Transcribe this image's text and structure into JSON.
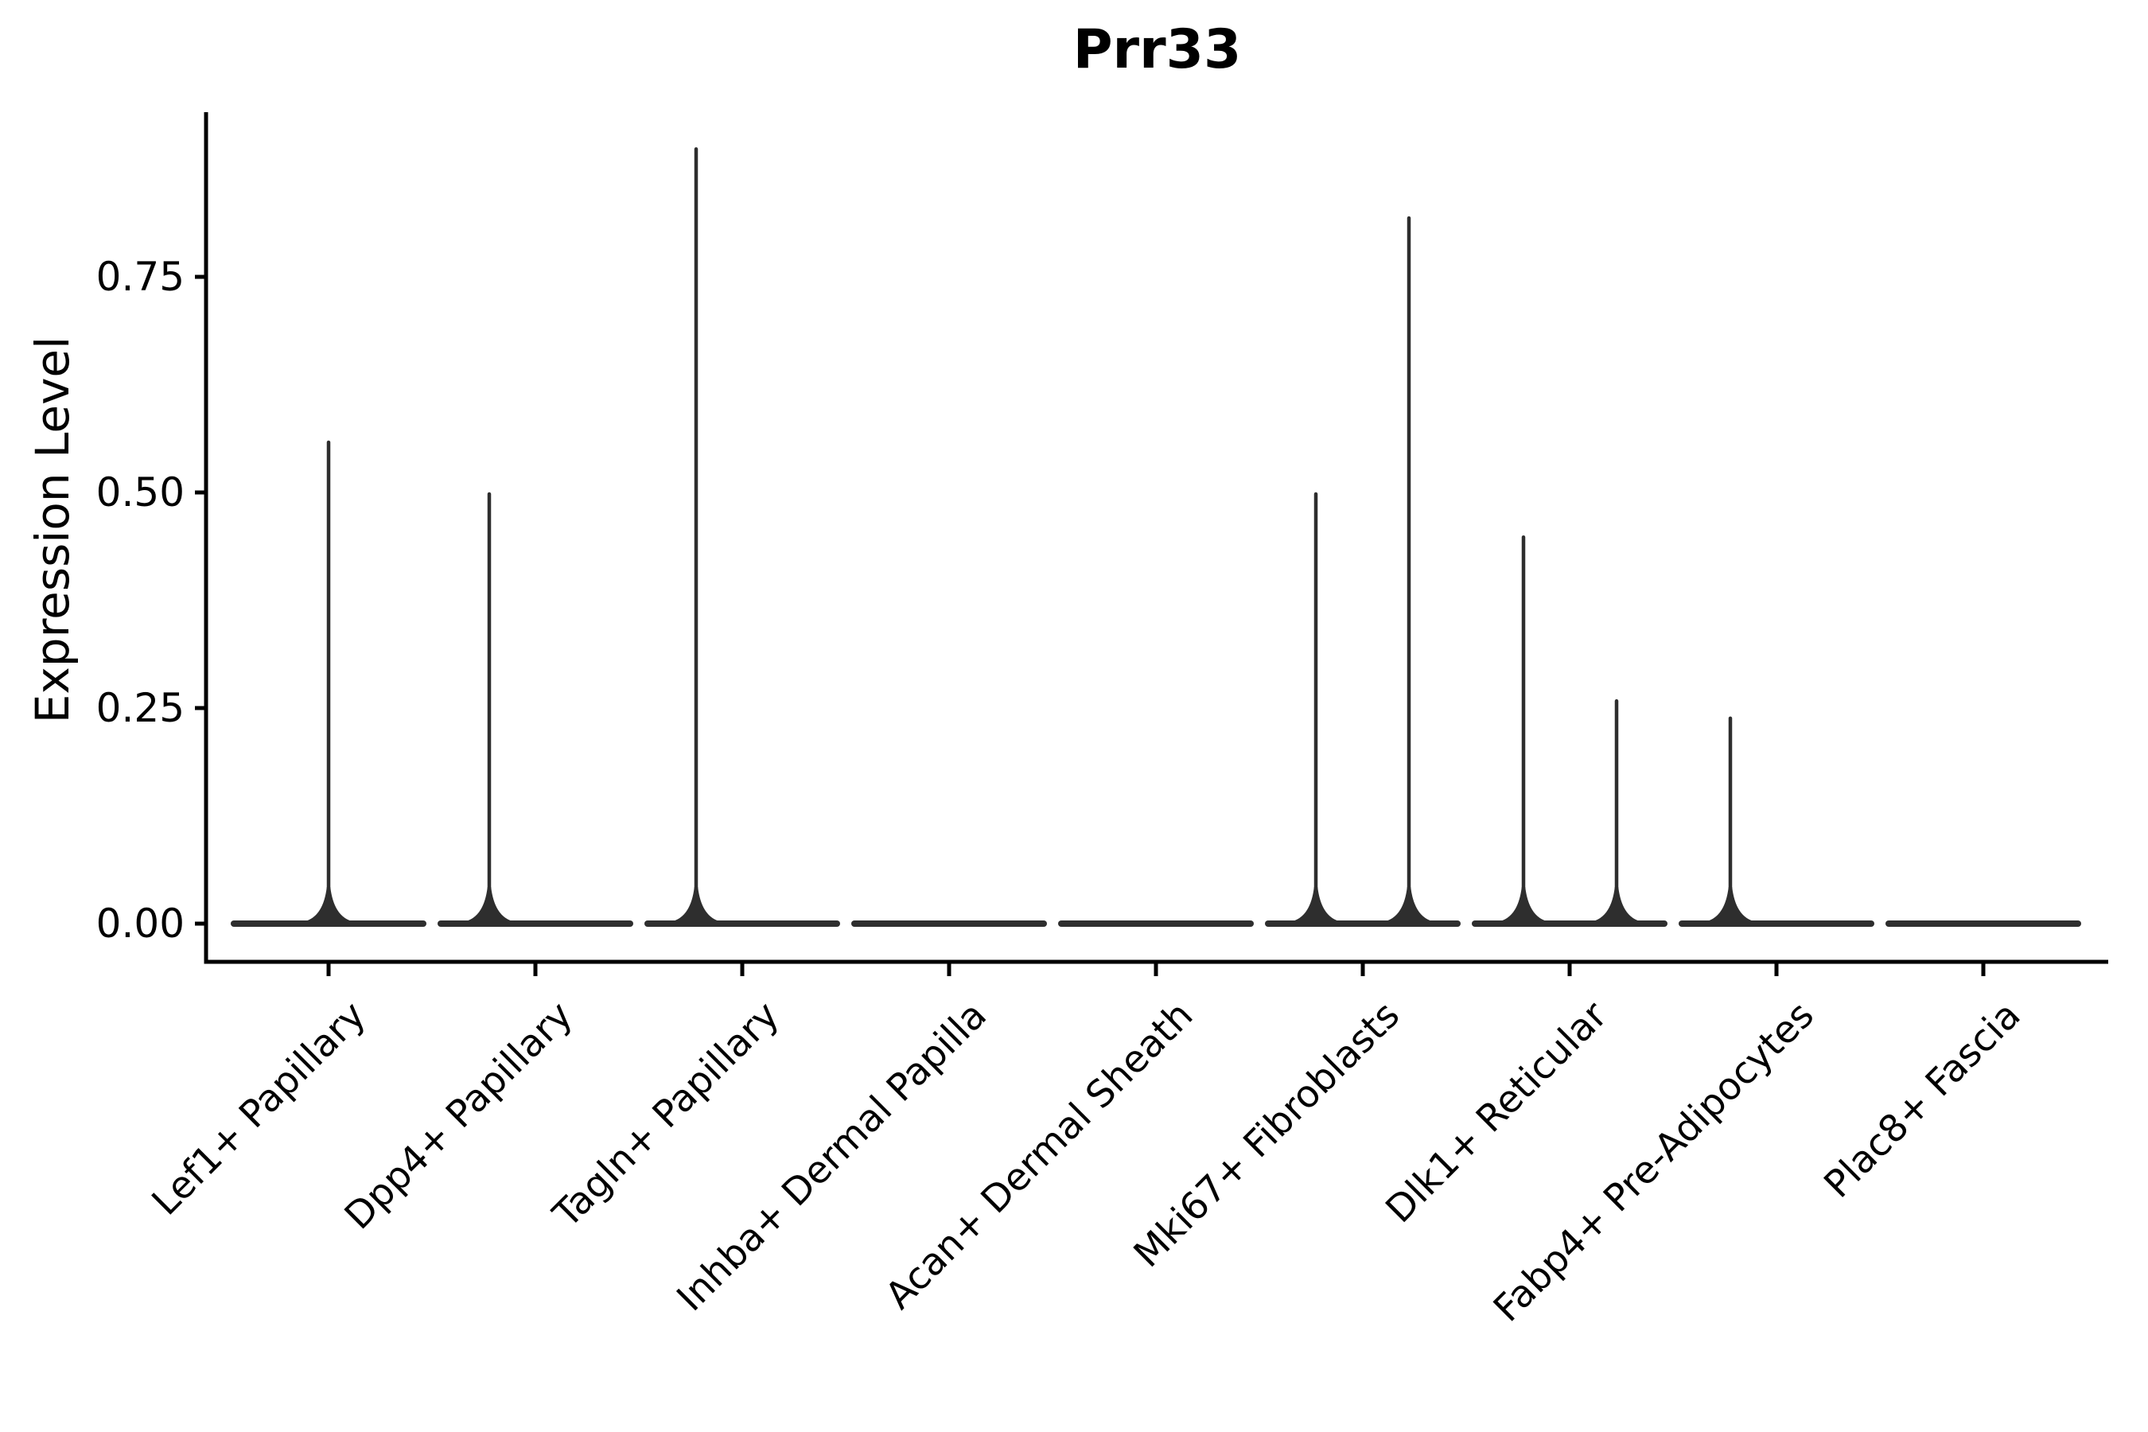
{
  "title": "Prr33",
  "y_axis": {
    "label": "Expression Level",
    "tick_labels": [
      "0.00",
      "0.25",
      "0.50",
      "0.75"
    ],
    "tick_values": [
      0.0,
      0.25,
      0.5,
      0.75
    ]
  },
  "colors": {
    "background": "#ffffff",
    "axis": "#000000",
    "violin": "#2e2e2e",
    "text": "#000000"
  },
  "chart_data": {
    "type": "violin",
    "title": "Prr33",
    "xlabel": "",
    "ylabel": "Expression Level",
    "ylim": [
      -0.045,
      0.94
    ],
    "grid": false,
    "legend": "none",
    "categories": [
      "Lef1+ Papillary",
      "Dpp4+ Papillary",
      "Tagln+ Papillary",
      "Inhba+ Dermal Papilla",
      "Acan+ Dermal Sheath",
      "Mki67+ Fibroblasts",
      "Dlk1+ Reticular",
      "Fabp4+ Pre-Adipocytes",
      "Plac8+ Fascia"
    ],
    "description": "Each cell type shows a violin collapsed to a flat bar at expression 0; thin spikes mark rare expressing cells reaching the listed maximum expression level. Spike offset is the horizontal shift (in px of the 2700px-wide canvas) from the category center.",
    "violins": [
      {
        "category": "Lef1+ Papillary",
        "baseline_value": 0,
        "spikes": [
          {
            "offset": 0,
            "max": 0.56
          }
        ]
      },
      {
        "category": "Dpp4+ Papillary",
        "baseline_value": 0,
        "spikes": [
          {
            "offset": -58,
            "max": 0.5
          }
        ]
      },
      {
        "category": "Tagln+ Papillary",
        "baseline_value": 0,
        "spikes": [
          {
            "offset": -58,
            "max": 0.9
          }
        ]
      },
      {
        "category": "Inhba+ Dermal Papilla",
        "baseline_value": 0,
        "spikes": []
      },
      {
        "category": "Acan+ Dermal Sheath",
        "baseline_value": 0,
        "spikes": []
      },
      {
        "category": "Mki67+ Fibroblasts",
        "baseline_value": 0,
        "spikes": [
          {
            "offset": -59,
            "max": 0.5
          },
          {
            "offset": 58,
            "max": 0.82
          }
        ]
      },
      {
        "category": "Dlk1+ Reticular",
        "baseline_value": 0,
        "spikes": [
          {
            "offset": -58,
            "max": 0.45
          },
          {
            "offset": 59,
            "max": 0.26
          }
        ]
      },
      {
        "category": "Fabp4+ Pre-Adipocytes",
        "baseline_value": 0,
        "spikes": [
          {
            "offset": -58,
            "max": 0.24
          }
        ]
      },
      {
        "category": "Plac8+ Fascia",
        "baseline_value": 0,
        "spikes": []
      }
    ]
  }
}
